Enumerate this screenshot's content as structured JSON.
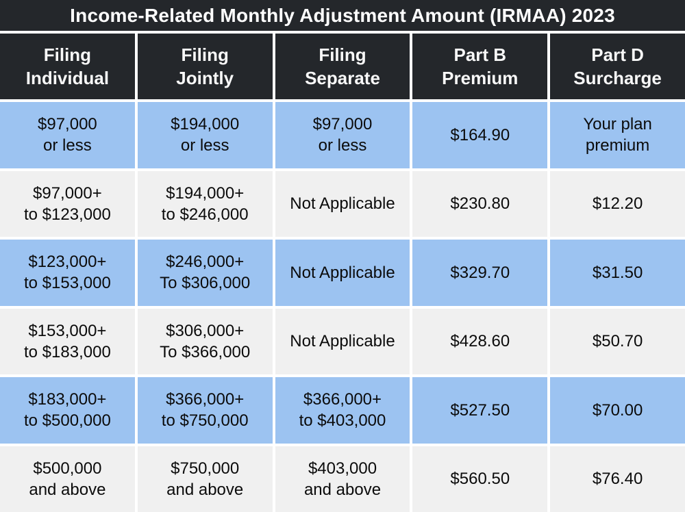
{
  "title": "Income-Related Monthly Adjustment Amount (IRMAA) 2023",
  "colors": {
    "header_bg": "#24272B",
    "header_text": "#FFFFFF",
    "row_blue": "#9CC3F1",
    "row_gray": "#F0F0F0",
    "divider": "#FFFFFF",
    "cell_text": "#0B0B0B"
  },
  "header": {
    "columns": [
      {
        "line1": "Filing",
        "line2": "Individual"
      },
      {
        "line1": "Filing",
        "line2": "Jointly"
      },
      {
        "line1": "Filing",
        "line2": "Separate"
      },
      {
        "line1": "Part B",
        "line2": "Premium"
      },
      {
        "line1": "Part D",
        "line2": "Surcharge"
      }
    ]
  },
  "rows": [
    {
      "cells": [
        {
          "line1": "$97,000",
          "line2": "or less"
        },
        {
          "line1": "$194,000",
          "line2": "or less"
        },
        {
          "line1": "$97,000",
          "line2": "or less"
        },
        {
          "line1": "$164.90"
        },
        {
          "line1": "Your plan",
          "line2": "premium"
        }
      ]
    },
    {
      "cells": [
        {
          "line1": "$97,000+",
          "line2": "to $123,000"
        },
        {
          "line1": "$194,000+",
          "line2": "to $246,000"
        },
        {
          "line1": "Not Applicable"
        },
        {
          "line1": "$230.80"
        },
        {
          "line1": "$12.20"
        }
      ]
    },
    {
      "cells": [
        {
          "line1": "$123,000+",
          "line2": "to $153,000"
        },
        {
          "line1": "$246,000+",
          "line2": "To $306,000"
        },
        {
          "line1": "Not Applicable"
        },
        {
          "line1": "$329.70"
        },
        {
          "line1": "$31.50"
        }
      ]
    },
    {
      "cells": [
        {
          "line1": "$153,000+",
          "line2": "to $183,000"
        },
        {
          "line1": "$306,000+",
          "line2": "To $366,000"
        },
        {
          "line1": "Not Applicable"
        },
        {
          "line1": "$428.60"
        },
        {
          "line1": "$50.70"
        }
      ]
    },
    {
      "cells": [
        {
          "line1": "$183,000+",
          "line2": "to $500,000"
        },
        {
          "line1": "$366,000+",
          "line2": "to $750,000"
        },
        {
          "line1": "$366,000+",
          "line2": "to $403,000"
        },
        {
          "line1": "$527.50"
        },
        {
          "line1": "$70.00"
        }
      ]
    },
    {
      "cells": [
        {
          "line1": "$500,000",
          "line2": "and above"
        },
        {
          "line1": "$750,000",
          "line2": "and above"
        },
        {
          "line1": "$403,000",
          "line2": "and above"
        },
        {
          "line1": "$560.50"
        },
        {
          "line1": "$76.40"
        }
      ]
    }
  ],
  "chart_data": {
    "type": "table",
    "title": "Income-Related Monthly Adjustment Amount (IRMAA) 2023",
    "columns": [
      "Filing Individual",
      "Filing Jointly",
      "Filing Separate",
      "Part B Premium",
      "Part D Surcharge"
    ],
    "rows": [
      [
        "$97,000 or less",
        "$194,000 or less",
        "$97,000 or less",
        "$164.90",
        "Your plan premium"
      ],
      [
        "$97,000+ to $123,000",
        "$194,000+ to $246,000",
        "Not Applicable",
        "$230.80",
        "$12.20"
      ],
      [
        "$123,000+ to $153,000",
        "$246,000+ To $306,000",
        "Not Applicable",
        "$329.70",
        "$31.50"
      ],
      [
        "$153,000+ to $183,000",
        "$306,000+ To $366,000",
        "Not Applicable",
        "$428.60",
        "$50.70"
      ],
      [
        "$183,000+ to $500,000",
        "$366,000+ to $750,000",
        "$366,000+ to $403,000",
        "$527.50",
        "$70.00"
      ],
      [
        "$500,000 and above",
        "$750,000 and above",
        "$403,000 and above",
        "$560.50",
        "$76.40"
      ]
    ]
  }
}
